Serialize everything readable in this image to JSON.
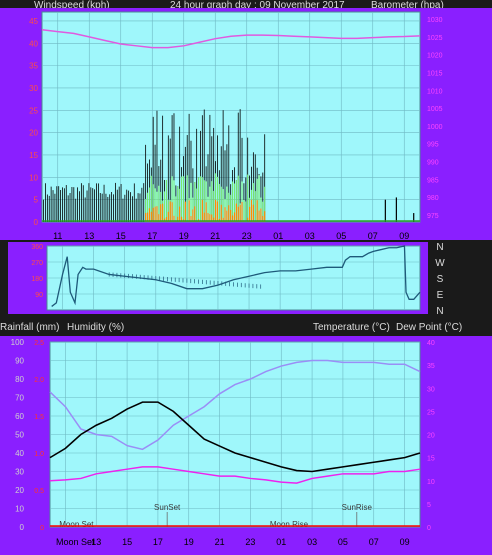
{
  "header": {
    "windspeed_label": "Windspeed (kph)",
    "graph_title": "24 hour graph day : 09 November 2017",
    "barometer_label": "Barometer (hpa)",
    "rain_label": "Rainfall (mm)",
    "humidity_label": "Humidity (%)",
    "temp_label": "Temperature (°C)",
    "dew_label": "Dew Point (°C)"
  },
  "colors": {
    "panel_bg": "#1a1a1a",
    "frame": "#8a1fff",
    "plot_bg": "#9ff7fb",
    "grid": "#6fb9c4",
    "wind": "#000000",
    "gust": "#7cf070",
    "avg_wind": "#ff8c00",
    "barometer": "#e05ae0",
    "direction": "#1e5a7a",
    "temperature": "#000000",
    "humidity": "#9a8ef6",
    "dewpoint": "#ee22ee",
    "rain": "#ff0000"
  },
  "time_ticks": [
    "11",
    "13",
    "15",
    "17",
    "19",
    "21",
    "23",
    "01",
    "03",
    "05",
    "07",
    "09"
  ],
  "chart_data": [
    {
      "type": "line",
      "name": "wind-barometer",
      "x_ticks": [
        "11",
        "13",
        "15",
        "17",
        "19",
        "21",
        "23",
        "01",
        "03",
        "05",
        "07",
        "09"
      ],
      "y_left_ticks": [
        "0",
        "5",
        "10",
        "15",
        "20",
        "25",
        "30",
        "35",
        "40",
        "45"
      ],
      "y_right_ticks": [
        "975",
        "980",
        "985",
        "990",
        "995",
        "1000",
        "1005",
        "1010",
        "1015",
        "1020",
        "1025",
        "1030"
      ],
      "ylim_left": [
        0,
        47
      ],
      "ylim_right": [
        973,
        1032
      ],
      "barometer": {
        "x": [
          0,
          1,
          2,
          3,
          4,
          5,
          6,
          7,
          8,
          9,
          10,
          11,
          12,
          13,
          14,
          15,
          16,
          17,
          18,
          19,
          20,
          21,
          22,
          23,
          24
        ],
        "y": [
          1027,
          1026.5,
          1026,
          1025,
          1024,
          1023,
          1022.5,
          1022,
          1022,
          1022.5,
          1023.5,
          1024.5,
          1025.2,
          1025.5,
          1025.5,
          1025.4,
          1025.2,
          1025,
          1024.8,
          1024.6,
          1024.6,
          1024.8,
          1025,
          1025.1,
          1025.3
        ]
      },
      "wind_period": [
        6.5,
        14.2
      ],
      "wind_late_spikes": [
        [
          21.8,
          5
        ],
        [
          22.5,
          5.5
        ],
        [
          23.6,
          2
        ]
      ],
      "annotations": []
    },
    {
      "type": "line",
      "name": "wind-direction",
      "right_labels": [
        "N",
        "W",
        "S",
        "E",
        "N"
      ],
      "y_ticks": [
        "90",
        "180",
        "270",
        "360"
      ],
      "direction": {
        "x": [
          0.3,
          0.6,
          1,
          1.3,
          1.5,
          1.8,
          2,
          2.3,
          2.5,
          3,
          4,
          5,
          6,
          7,
          8,
          9,
          10,
          11,
          12,
          13,
          14,
          15,
          16,
          17,
          18,
          19,
          19.2,
          19.5,
          20,
          20.3,
          20.7,
          21,
          21.5,
          22,
          22.5,
          23,
          23.1,
          23.3,
          23.6,
          24
        ],
        "y": [
          20,
          40,
          200,
          300,
          100,
          40,
          200,
          240,
          230,
          230,
          200,
          190,
          180,
          170,
          150,
          120,
          120,
          140,
          170,
          190,
          210,
          220,
          220,
          230,
          240,
          240,
          280,
          300,
          300,
          300,
          320,
          330,
          340,
          350,
          350,
          360,
          100,
          60,
          60,
          100
        ]
      }
    },
    {
      "type": "line",
      "name": "temperature-humidity",
      "y_left_ticks": [
        "0",
        "10",
        "20",
        "30",
        "40",
        "50",
        "60",
        "70",
        "80",
        "90",
        "100"
      ],
      "y_rain_ticks": [
        "0",
        "0.5",
        "1.0",
        "1.5",
        "2.0",
        "2.5"
      ],
      "y_right_ticks": [
        "0",
        "5",
        "10",
        "15",
        "20",
        "25",
        "30",
        "35",
        "40"
      ],
      "ylim_left": [
        0,
        100
      ],
      "ylim_right": [
        0,
        40
      ],
      "temperature": {
        "x": [
          0,
          1,
          2,
          3,
          4,
          5,
          6,
          7,
          8,
          9,
          10,
          11,
          12,
          13,
          14,
          15,
          16,
          17,
          18,
          19,
          20,
          21,
          22,
          23,
          24
        ],
        "y": [
          15,
          17,
          20,
          22,
          23.5,
          25.5,
          27,
          27,
          25,
          22,
          19,
          17.5,
          16,
          15,
          14,
          13,
          12.2,
          12,
          12.5,
          13,
          13.5,
          14,
          14.5,
          15,
          16
        ]
      },
      "humidity": {
        "x": [
          0,
          1,
          2,
          3,
          4,
          5,
          6,
          7,
          8,
          9,
          10,
          11,
          12,
          13,
          14,
          15,
          16,
          17,
          18,
          19,
          20,
          21,
          22,
          23,
          24
        ],
        "y": [
          73,
          65,
          53,
          50,
          49,
          44,
          42,
          47,
          55,
          60,
          65,
          72,
          77,
          80,
          84,
          87,
          89,
          90,
          90,
          89,
          89,
          89,
          88,
          88,
          84
        ]
      },
      "dewpoint": {
        "x": [
          0,
          1,
          2,
          3,
          4,
          5,
          6,
          7,
          8,
          9,
          10,
          11,
          12,
          13,
          14,
          15,
          16,
          17,
          18,
          19,
          20,
          21,
          22,
          23,
          24
        ],
        "y": [
          10,
          10.2,
          10.5,
          11.5,
          12,
          12.5,
          13,
          13,
          12.5,
          12,
          11.5,
          11,
          11,
          10.5,
          10.2,
          9.7,
          9.5,
          10.5,
          11,
          11.5,
          11.5,
          11.5,
          12,
          12,
          12.5
        ]
      },
      "rain": {
        "x": [
          0,
          24
        ],
        "y": [
          0,
          0
        ]
      },
      "annotations": [
        "SunSet",
        "SunRise",
        "Moon Set",
        "Moon Rise"
      ],
      "bottom_label": "Moon Set"
    }
  ]
}
